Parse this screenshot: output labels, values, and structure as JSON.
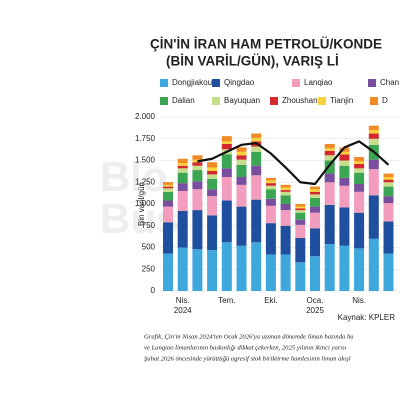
{
  "chart_data": {
    "type": "bar",
    "title": "ÇİN'İN İRAN HAM PETROLÜ/KONDE",
    "subtitle": "(BİN VARİL/GÜN), VARIŞ Lİ",
    "ylabel": "Bin varil/gün",
    "source": "Kaynak: KPLER",
    "watermark": [
      "Blo",
      "Bus"
    ],
    "caption": [
      "Grafik, Çin'in Nisan 2024'ten Ocak 2026'ya uzanan dönemde liman bazında ha",
      "ve Lanqiao limanlarının baskınlığı dikkat çekerken, 2025 yılının ikinci yarısı",
      "Şubat 2026 öncesinde yürüttüğü agresif stok biriktirme hamlesinin liman akışl"
    ],
    "categories": [
      null,
      "Nis. 2024",
      null,
      null,
      "Tem.",
      null,
      null,
      "Eki.",
      null,
      null,
      "Oca. 2025",
      null,
      null,
      "Nis.",
      null,
      null
    ],
    "ylim": [
      0,
      2000
    ],
    "yticks": [
      0,
      {
        "value": 250,
        "label": "250"
      },
      {
        "value": 500,
        "label": "500"
      },
      {
        "value": 750,
        "label": "750"
      },
      {
        "value": 1000,
        "label": "1.000"
      },
      {
        "value": 1250,
        "label": "1.250"
      },
      {
        "value": 1500,
        "label": "1.500"
      },
      {
        "value": 1750,
        "label": "1.750"
      },
      {
        "value": 2000,
        "label": "2.000"
      }
    ],
    "grid": true,
    "series": [
      {
        "name": "Dongjiakou",
        "color": "#3ea8dd",
        "values": [
          430,
          500,
          480,
          470,
          560,
          520,
          560,
          420,
          420,
          330,
          400,
          540,
          520,
          490,
          600,
          430
        ]
      },
      {
        "name": "Qingdao",
        "color": "#1f4f9e",
        "values": [
          360,
          420,
          450,
          400,
          480,
          450,
          490,
          360,
          330,
          280,
          320,
          450,
          440,
          410,
          500,
          370
        ]
      },
      {
        "name": "Lanqiao",
        "color": "#f29dbd",
        "values": [
          180,
          230,
          240,
          220,
          270,
          250,
          280,
          200,
          180,
          150,
          180,
          260,
          250,
          240,
          300,
          210
        ]
      },
      {
        "name": "Chan",
        "color": "#7a4e9f",
        "values": [
          70,
          90,
          90,
          80,
          100,
          90,
          110,
          80,
          70,
          60,
          70,
          100,
          90,
          90,
          110,
          80
        ]
      },
      {
        "name": "Dalian",
        "color": "#3ba554",
        "values": [
          100,
          120,
          130,
          120,
          160,
          140,
          160,
          110,
          100,
          80,
          100,
          150,
          140,
          130,
          170,
          110
        ]
      },
      {
        "name": "Bayuquan",
        "color": "#c6de8b",
        "values": [
          40,
          50,
          50,
          50,
          60,
          60,
          60,
          40,
          40,
          30,
          40,
          60,
          60,
          50,
          70,
          50
        ]
      },
      {
        "name": "Zhoushan",
        "color": "#d6262e",
        "values": [
          20,
          30,
          40,
          40,
          60,
          50,
          60,
          30,
          20,
          20,
          30,
          50,
          70,
          50,
          60,
          30
        ]
      },
      {
        "name": "Tianjin",
        "color": "#f6d33c",
        "values": [
          20,
          30,
          30,
          40,
          30,
          40,
          40,
          30,
          30,
          20,
          30,
          30,
          30,
          30,
          40,
          30
        ]
      },
      {
        "name": "D",
        "color": "#ef8a24",
        "values": [
          30,
          50,
          50,
          60,
          60,
          50,
          50,
          30,
          30,
          30,
          30,
          50,
          50,
          50,
          50,
          40
        ]
      }
    ],
    "line": {
      "color": "#111111",
      "values": [
        null,
        null,
        1490,
        1520,
        1600,
        1680,
        1700,
        1580,
        1420,
        1250,
        1230,
        1450,
        1650,
        1720,
        1600,
        1450
      ]
    }
  }
}
